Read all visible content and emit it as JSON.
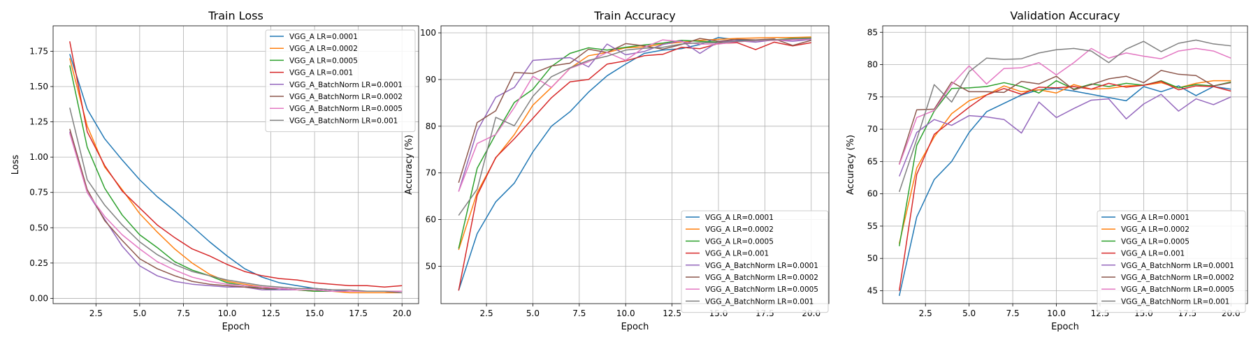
{
  "chart_data": [
    {
      "type": "line",
      "title": "Train Loss",
      "xlabel": "Epoch",
      "ylabel": "Loss",
      "xlim": [
        0.05,
        20.95
      ],
      "ylim": [
        -0.0375,
        1.93
      ],
      "xticks": [
        2.5,
        5.0,
        7.5,
        10.0,
        12.5,
        15.0,
        17.5,
        20.0
      ],
      "xtick_labels": [
        "2.5",
        "5.0",
        "7.5",
        "10.0",
        "12.5",
        "15.0",
        "17.5",
        "20.0"
      ],
      "yticks": [
        0.0,
        0.25,
        0.5,
        0.75,
        1.0,
        1.25,
        1.5,
        1.75
      ],
      "ytick_labels": [
        "0.00",
        "0.25",
        "0.50",
        "0.75",
        "1.00",
        "1.25",
        "1.50",
        "1.75"
      ],
      "grid": true,
      "legend_position": "top-right",
      "x": [
        1,
        2,
        3,
        4,
        5,
        6,
        7,
        8,
        9,
        10,
        11,
        12,
        13,
        14,
        15,
        16,
        17,
        18,
        19,
        20
      ],
      "series": [
        {
          "name": "VGG_A LR=0.0001",
          "color": "#1f77b4",
          "values": [
            1.73,
            1.34,
            1.13,
            0.98,
            0.84,
            0.72,
            0.62,
            0.51,
            0.4,
            0.3,
            0.21,
            0.15,
            0.11,
            0.09,
            0.07,
            0.06,
            0.05,
            0.05,
            0.05,
            0.05
          ]
        },
        {
          "name": "VGG_A LR=0.0002",
          "color": "#ff7f0e",
          "values": [
            1.7,
            1.22,
            0.93,
            0.77,
            0.6,
            0.47,
            0.35,
            0.25,
            0.17,
            0.12,
            0.1,
            0.08,
            0.07,
            0.06,
            0.05,
            0.05,
            0.04,
            0.04,
            0.04,
            0.04
          ]
        },
        {
          "name": "VGG_A LR=0.0005",
          "color": "#2ca02c",
          "values": [
            1.65,
            1.07,
            0.78,
            0.59,
            0.45,
            0.36,
            0.26,
            0.2,
            0.16,
            0.11,
            0.09,
            0.07,
            0.06,
            0.06,
            0.05,
            0.05,
            0.05,
            0.05,
            0.05,
            0.05
          ]
        },
        {
          "name": "VGG_A LR=0.001",
          "color": "#d62728",
          "values": [
            1.82,
            1.18,
            0.94,
            0.76,
            0.64,
            0.52,
            0.43,
            0.35,
            0.3,
            0.24,
            0.19,
            0.16,
            0.14,
            0.13,
            0.11,
            0.1,
            0.09,
            0.09,
            0.08,
            0.09
          ]
        },
        {
          "name": "VGG_A_BatchNorm LR=0.0001",
          "color": "#9467bd",
          "values": [
            1.18,
            0.75,
            0.56,
            0.37,
            0.23,
            0.16,
            0.12,
            0.1,
            0.09,
            0.08,
            0.08,
            0.06,
            0.06,
            0.06,
            0.06,
            0.05,
            0.05,
            0.05,
            0.05,
            0.04
          ]
        },
        {
          "name": "VGG_A_BatchNorm LR=0.0002",
          "color": "#8c564b",
          "values": [
            1.2,
            0.77,
            0.55,
            0.41,
            0.28,
            0.21,
            0.16,
            0.12,
            0.1,
            0.09,
            0.08,
            0.07,
            0.07,
            0.06,
            0.06,
            0.05,
            0.05,
            0.05,
            0.05,
            0.05
          ]
        },
        {
          "name": "VGG_A_BatchNorm LR=0.0005",
          "color": "#e377c2",
          "values": [
            1.17,
            0.75,
            0.58,
            0.45,
            0.35,
            0.26,
            0.2,
            0.15,
            0.12,
            0.1,
            0.09,
            0.08,
            0.07,
            0.06,
            0.06,
            0.05,
            0.05,
            0.05,
            0.05,
            0.05
          ]
        },
        {
          "name": "VGG_A_BatchNorm LR=0.001",
          "color": "#7f7f7f",
          "values": [
            1.35,
            0.84,
            0.66,
            0.52,
            0.4,
            0.31,
            0.24,
            0.19,
            0.16,
            0.13,
            0.11,
            0.09,
            0.08,
            0.07,
            0.07,
            0.06,
            0.06,
            0.05,
            0.05,
            0.04
          ]
        }
      ]
    },
    {
      "type": "line",
      "title": "Train Accuracy",
      "xlabel": "Epoch",
      "ylabel": "Accuracy (%)",
      "xlim": [
        0.05,
        20.95
      ],
      "ylim": [
        42.0,
        101.5
      ],
      "xticks": [
        2.5,
        5.0,
        7.5,
        10.0,
        12.5,
        15.0,
        17.5,
        20.0
      ],
      "xtick_labels": [
        "2.5",
        "5.0",
        "7.5",
        "10.0",
        "12.5",
        "15.0",
        "17.5",
        "20.0"
      ],
      "yticks": [
        50,
        60,
        70,
        80,
        90,
        100
      ],
      "ytick_labels": [
        "50",
        "60",
        "70",
        "80",
        "90",
        "100"
      ],
      "grid": true,
      "legend_position": "bottom-right",
      "x": [
        1,
        2,
        3,
        4,
        5,
        6,
        7,
        8,
        9,
        10,
        11,
        12,
        13,
        14,
        15,
        16,
        17,
        18,
        19,
        20
      ],
      "series": [
        {
          "name": "VGG_A LR=0.0001",
          "color": "#1f77b4",
          "values": [
            44.8,
            57.0,
            63.8,
            67.8,
            74.5,
            80.0,
            83.1,
            87.3,
            90.8,
            93.3,
            95.6,
            96.3,
            96.6,
            97.5,
            99.0,
            98.5,
            98.3,
            98.5,
            98.6,
            98.8
          ]
        },
        {
          "name": "VGG_A LR=0.0002",
          "color": "#ff7f0e",
          "values": [
            53.5,
            65.8,
            73.2,
            78.2,
            84.5,
            88.3,
            92.4,
            95.1,
            95.8,
            96.8,
            97.0,
            97.6,
            98.0,
            98.4,
            98.6,
            98.8,
            98.9,
            99.0,
            99.0,
            99.1
          ]
        },
        {
          "name": "VGG_A LR=0.0005",
          "color": "#2ca02c",
          "values": [
            53.8,
            71.0,
            78.3,
            85.1,
            87.9,
            92.8,
            95.6,
            96.8,
            96.3,
            96.9,
            97.4,
            97.8,
            98.4,
            98.2,
            98.0,
            98.1,
            98.3,
            98.5,
            98.8,
            98.9
          ]
        },
        {
          "name": "VGG_A LR=0.001",
          "color": "#d62728",
          "values": [
            44.8,
            65.2,
            73.3,
            77.3,
            81.7,
            86.1,
            89.5,
            90.0,
            93.3,
            94.0,
            95.1,
            95.4,
            96.9,
            96.6,
            97.7,
            97.9,
            96.4,
            98.0,
            97.2,
            97.9
          ]
        },
        {
          "name": "VGG_A_BatchNorm LR=0.0001",
          "color": "#9467bd",
          "values": [
            66.0,
            79.0,
            86.2,
            88.3,
            94.1,
            94.4,
            94.7,
            92.7,
            97.6,
            95.3,
            96.0,
            97.5,
            98.3,
            95.6,
            98.1,
            98.3,
            98.0,
            98.5,
            98.2,
            98.6
          ]
        },
        {
          "name": "VGG_A_BatchNorm LR=0.0002",
          "color": "#8c564b",
          "values": [
            67.9,
            80.8,
            83.3,
            91.5,
            91.3,
            92.9,
            93.5,
            96.5,
            95.8,
            97.7,
            97.2,
            96.5,
            97.5,
            98.8,
            98.2,
            98.6,
            98.5,
            98.7,
            97.3,
            98.4
          ]
        },
        {
          "name": "VGG_A_BatchNorm LR=0.0005",
          "color": "#e377c2",
          "values": [
            66.0,
            76.3,
            78.2,
            84.0,
            90.7,
            88.3,
            92.4,
            93.8,
            95.8,
            94.1,
            96.9,
            98.5,
            98.1,
            97.6,
            97.6,
            98.1,
            98.3,
            98.4,
            98.5,
            98.7
          ]
        },
        {
          "name": "VGG_A_BatchNorm LR=0.001",
          "color": "#7f7f7f",
          "values": [
            60.9,
            66.5,
            81.9,
            80.1,
            86.4,
            90.6,
            92.5,
            94.1,
            95.0,
            96.3,
            96.7,
            96.9,
            97.6,
            97.9,
            97.9,
            98.2,
            98.4,
            98.5,
            98.7,
            98.8
          ]
        }
      ]
    },
    {
      "type": "line",
      "title": "Validation Accuracy",
      "xlabel": "Epoch",
      "ylabel": "Accuracy (%)",
      "xlim": [
        0.05,
        20.95
      ],
      "ylim": [
        43.0,
        86.0
      ],
      "xticks": [
        2.5,
        5.0,
        7.5,
        10.0,
        12.5,
        15.0,
        17.5,
        20.0
      ],
      "xtick_labels": [
        "2.5",
        "5.0",
        "7.5",
        "10.0",
        "12.5",
        "15.0",
        "17.5",
        "20.0"
      ],
      "yticks": [
        45,
        50,
        55,
        60,
        65,
        70,
        75,
        80,
        85
      ],
      "ytick_labels": [
        "45",
        "50",
        "55",
        "60",
        "65",
        "70",
        "75",
        "80",
        "85"
      ],
      "grid": true,
      "legend_position": "bottom-right",
      "x": [
        1,
        2,
        3,
        4,
        5,
        6,
        7,
        8,
        9,
        10,
        11,
        12,
        13,
        14,
        15,
        16,
        17,
        18,
        19,
        20
      ],
      "series": [
        {
          "name": "VGG_A LR=0.0001",
          "color": "#1f77b4",
          "values": [
            44.2,
            56.4,
            62.2,
            65.0,
            69.5,
            72.7,
            74.0,
            75.3,
            76.1,
            76.3,
            75.9,
            75.4,
            74.9,
            74.4,
            76.6,
            75.8,
            76.7,
            75.2,
            76.6,
            76.2
          ]
        },
        {
          "name": "VGG_A LR=0.0002",
          "color": "#ff7f0e",
          "values": [
            52.3,
            64.0,
            68.8,
            72.4,
            74.4,
            75.3,
            76.7,
            75.8,
            76.1,
            75.6,
            76.9,
            76.2,
            76.3,
            76.7,
            76.8,
            77.2,
            76.4,
            77.1,
            77.5,
            77.5
          ]
        },
        {
          "name": "VGG_A LR=0.0005",
          "color": "#2ca02c",
          "values": [
            51.9,
            67.5,
            72.8,
            76.3,
            76.4,
            76.6,
            77.2,
            76.6,
            75.6,
            77.5,
            76.2,
            77.0,
            76.6,
            77.1,
            76.8,
            77.5,
            76.4,
            76.9,
            76.7,
            77.3
          ]
        },
        {
          "name": "VGG_A LR=0.001",
          "color": "#d62728",
          "values": [
            45.0,
            63.0,
            69.2,
            71.3,
            73.4,
            75.3,
            76.3,
            75.4,
            76.5,
            76.4,
            76.6,
            76.2,
            77.1,
            76.5,
            76.8,
            77.4,
            76.1,
            76.7,
            76.6,
            75.9
          ]
        },
        {
          "name": "VGG_A_BatchNorm LR=0.0001",
          "color": "#9467bd",
          "values": [
            62.7,
            69.5,
            71.5,
            70.6,
            72.1,
            71.9,
            71.5,
            69.4,
            74.2,
            71.8,
            73.2,
            74.5,
            74.7,
            71.6,
            73.9,
            75.4,
            72.8,
            74.7,
            73.8,
            75.0
          ]
        },
        {
          "name": "VGG_A_BatchNorm LR=0.0002",
          "color": "#8c564b",
          "values": [
            64.6,
            73.0,
            73.1,
            77.3,
            75.8,
            75.8,
            75.7,
            77.4,
            77.0,
            78.2,
            76.1,
            76.9,
            77.8,
            78.2,
            77.2,
            79.1,
            78.5,
            78.3,
            76.7,
            77.2
          ]
        },
        {
          "name": "VGG_A_BatchNorm LR=0.0005",
          "color": "#e377c2",
          "values": [
            64.5,
            71.8,
            72.9,
            76.9,
            79.8,
            77.0,
            79.4,
            79.5,
            80.3,
            78.4,
            80.3,
            82.5,
            81.0,
            81.8,
            81.3,
            80.9,
            82.1,
            82.5,
            82.1,
            81.0
          ]
        },
        {
          "name": "VGG_A_BatchNorm LR=0.001",
          "color": "#7f7f7f",
          "values": [
            60.3,
            68.4,
            76.9,
            74.2,
            78.9,
            81.0,
            80.8,
            80.9,
            81.8,
            82.3,
            82.5,
            82.1,
            80.3,
            82.4,
            83.6,
            82.0,
            83.3,
            83.8,
            83.2,
            82.9
          ]
        }
      ]
    }
  ]
}
